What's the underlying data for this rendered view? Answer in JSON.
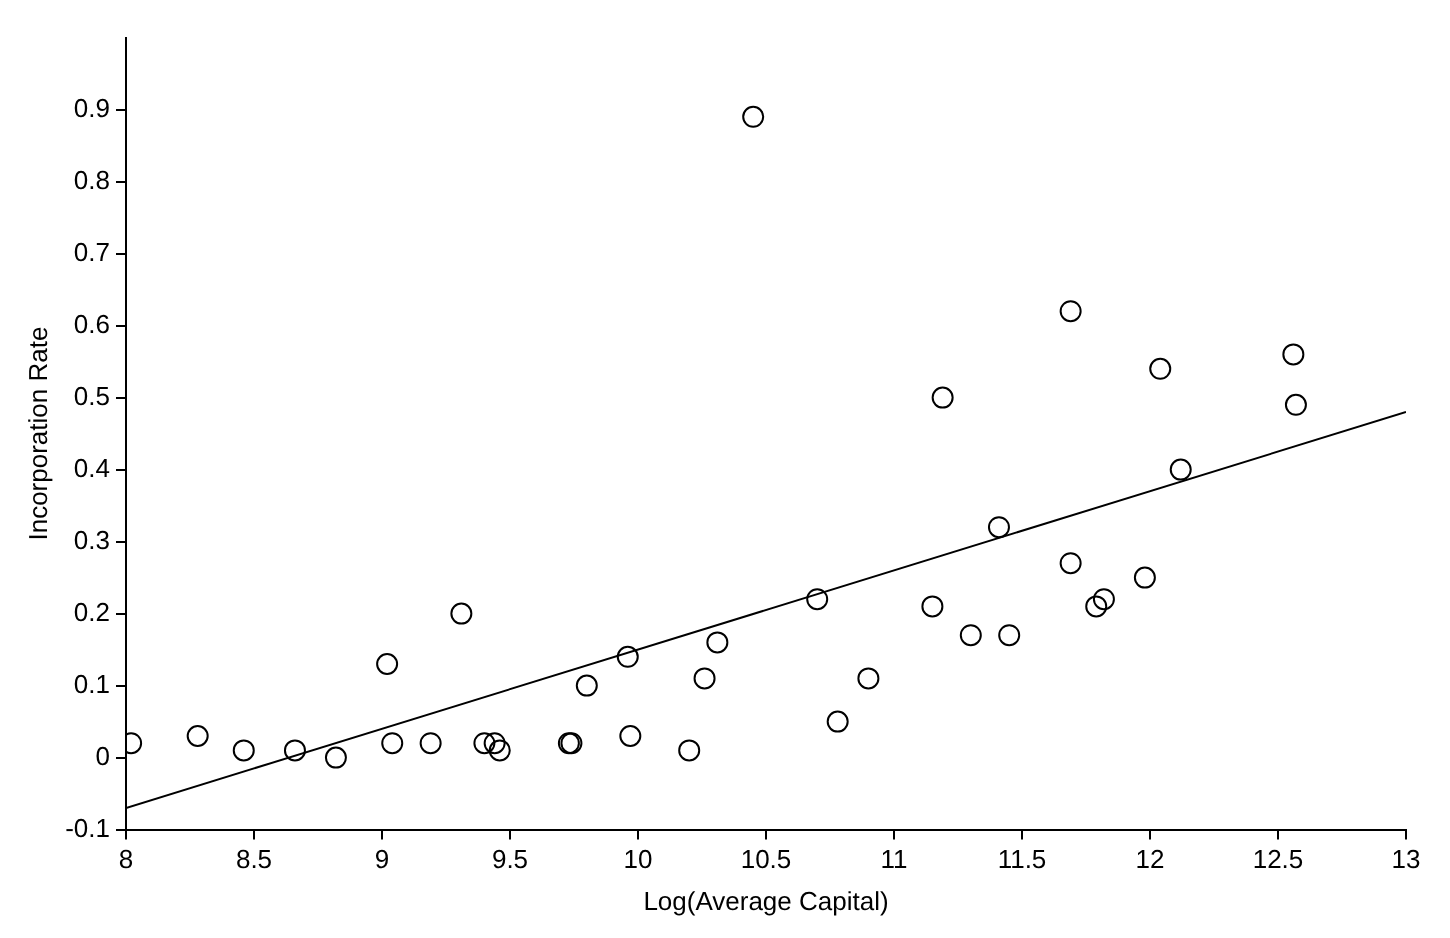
{
  "chart_data": {
    "type": "scatter",
    "xlabel": "Log(Average Capital)",
    "ylabel": "Incorporation Rate",
    "xlim": [
      8,
      13
    ],
    "ylim": [
      -0.1,
      1.0
    ],
    "xticks": [
      8,
      8.5,
      9,
      9.5,
      10,
      10.5,
      11,
      11.5,
      12,
      12.5,
      13
    ],
    "yticks": [
      -0.1,
      0,
      0.1,
      0.2,
      0.3,
      0.4,
      0.5,
      0.6,
      0.7,
      0.8,
      0.9
    ],
    "grid": false,
    "legend": false,
    "marker": "circle",
    "series": [
      {
        "type": "scatter",
        "color": "#000000",
        "x": [
          8.02,
          8.28,
          8.46,
          8.66,
          8.82,
          9.02,
          9.04,
          9.19,
          9.31,
          9.4,
          9.44,
          9.46,
          9.73,
          9.74,
          9.8,
          9.96,
          9.97,
          10.2,
          10.26,
          10.31,
          10.45,
          10.7,
          10.78,
          10.9,
          11.15,
          11.19,
          11.3,
          11.41,
          11.45,
          11.69,
          11.69,
          11.79,
          11.82,
          11.98,
          12.04,
          12.12,
          12.56,
          12.57
        ],
        "values": [
          0.02,
          0.03,
          0.01,
          0.01,
          0.0,
          0.13,
          0.02,
          0.02,
          0.2,
          0.02,
          0.02,
          0.01,
          0.02,
          0.02,
          0.1,
          0.14,
          0.03,
          0.01,
          0.11,
          0.16,
          0.89,
          0.22,
          0.05,
          0.11,
          0.21,
          0.5,
          0.17,
          0.32,
          0.17,
          0.62,
          0.27,
          0.21,
          0.22,
          0.25,
          0.54,
          0.4,
          0.56,
          0.49
        ]
      },
      {
        "type": "line",
        "color": "#000000",
        "marker": "none",
        "x": [
          8,
          13
        ],
        "values": [
          -0.07,
          0.48
        ]
      }
    ]
  }
}
